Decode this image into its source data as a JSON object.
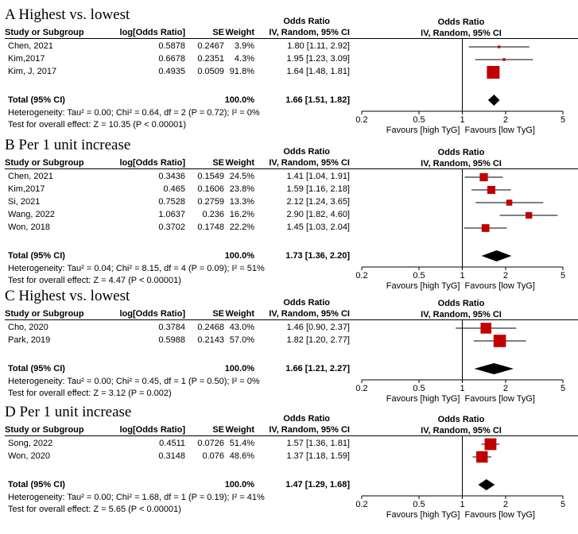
{
  "chart_data": [
    {
      "type": "forest",
      "title": "A Highest vs. lowest",
      "header": {
        "or_top": "Odds Ratio",
        "study": "Study or Subgroup",
        "logor": "log[Odds Ratio]",
        "se": "SE",
        "weight": "Weight",
        "ci": "IV, Random, 95% CI",
        "plot_top": "Odds Ratio",
        "plot_ci": "IV, Random, 95% CI"
      },
      "studies": [
        {
          "name": "Chen, 2021",
          "logor": "0.5878",
          "se": "0.2467",
          "weight": "3.9%",
          "ci_text": "1.80 [1.11, 2.92]",
          "or": 1.8,
          "lo": 1.11,
          "hi": 2.92,
          "w": 3.9
        },
        {
          "name": "Kim,2017",
          "logor": "0.6678",
          "se": "0.2351",
          "weight": "4.3%",
          "ci_text": "1.95 [1.23, 3.09]",
          "or": 1.95,
          "lo": 1.23,
          "hi": 3.09,
          "w": 4.3
        },
        {
          "name": "Kim, J, 2017",
          "logor": "0.4935",
          "se": "0.0509",
          "weight": "91.8%",
          "ci_text": "1.64 [1.48, 1.81]",
          "or": 1.64,
          "lo": 1.48,
          "hi": 1.81,
          "w": 91.8
        }
      ],
      "total": {
        "label": "Total (95% CI)",
        "weight": "100.0%",
        "ci_text": "1.66 [1.51, 1.82]",
        "or": 1.66,
        "lo": 1.51,
        "hi": 1.82
      },
      "heterogeneity": "Heterogeneity: Tau² = 0.00; Chi² = 0.64, df = 2 (P = 0.72); I² = 0%",
      "overall": "Test for overall effect: Z = 10.35 (P < 0.00001)",
      "x_ticks": [
        "0.2",
        "0.5",
        "1",
        "2",
        "5"
      ],
      "x_scale": "log",
      "xlim": [
        0.2,
        5
      ],
      "favours_left": "Favours [high TyG]",
      "favours_right": "Favours [low TyG]"
    },
    {
      "type": "forest",
      "title": "B Per 1 unit increase",
      "header": {
        "or_top": "Odds Ratio",
        "study": "Study or Subgroup",
        "logor": "log[Odds Ratio]",
        "se": "SE",
        "weight": "Weight",
        "ci": "IV, Random, 95% CI",
        "plot_top": "Odds Ratio",
        "plot_ci": "IV, Random, 95% CI"
      },
      "studies": [
        {
          "name": "Chen, 2021",
          "logor": "0.3436",
          "se": "0.1549",
          "weight": "24.5%",
          "ci_text": "1.41 [1.04, 1.91]",
          "or": 1.41,
          "lo": 1.04,
          "hi": 1.91,
          "w": 24.5
        },
        {
          "name": "Kim,2017",
          "logor": "0.465",
          "se": "0.1606",
          "weight": "23.8%",
          "ci_text": "1.59 [1.16, 2.18]",
          "or": 1.59,
          "lo": 1.16,
          "hi": 2.18,
          "w": 23.8
        },
        {
          "name": "Si, 2021",
          "logor": "0.7528",
          "se": "0.2759",
          "weight": "13.3%",
          "ci_text": "2.12 [1.24, 3.65]",
          "or": 2.12,
          "lo": 1.24,
          "hi": 3.65,
          "w": 13.3
        },
        {
          "name": "Wang, 2022",
          "logor": "1.0637",
          "se": "0.236",
          "weight": "16.2%",
          "ci_text": "2.90 [1.82, 4.60]",
          "or": 2.9,
          "lo": 1.82,
          "hi": 4.6,
          "w": 16.2
        },
        {
          "name": "Won, 2018",
          "logor": "0.3702",
          "se": "0.1748",
          "weight": "22.2%",
          "ci_text": "1.45 [1.03, 2.04]",
          "or": 1.45,
          "lo": 1.03,
          "hi": 2.04,
          "w": 22.2
        }
      ],
      "total": {
        "label": "Total (95% CI)",
        "weight": "100.0%",
        "ci_text": "1.73 [1.36, 2.20]",
        "or": 1.73,
        "lo": 1.36,
        "hi": 2.2
      },
      "heterogeneity": "Heterogeneity: Tau² = 0.04; Chi² = 8.15, df = 4 (P = 0.09); I² = 51%",
      "overall": "Test for overall effect: Z = 4.47 (P < 0.00001)",
      "x_ticks": [
        "0.2",
        "0.5",
        "1",
        "2",
        "5"
      ],
      "x_scale": "log",
      "xlim": [
        0.2,
        5
      ],
      "favours_left": "Favours [high TyG]",
      "favours_right": "Favours [low TyG]"
    },
    {
      "type": "forest",
      "title": "C Highest vs. lowest",
      "header": {
        "or_top": "Odds Ratio",
        "study": "Study or Subgroup",
        "logor": "log[Odds Ratio]",
        "se": "SE",
        "weight": "Weight",
        "ci": "IV, Random, 95% CI",
        "plot_top": "Odds Ratio",
        "plot_ci": "IV, Random, 95% CI"
      },
      "studies": [
        {
          "name": "Cho, 2020",
          "logor": "0.3784",
          "se": "0.2468",
          "weight": "43.0%",
          "ci_text": "1.46 [0.90, 2.37]",
          "or": 1.46,
          "lo": 0.9,
          "hi": 2.37,
          "w": 43.0
        },
        {
          "name": "Park, 2019",
          "logor": "0.5988",
          "se": "0.2143",
          "weight": "57.0%",
          "ci_text": "1.82 [1.20, 2.77]",
          "or": 1.82,
          "lo": 1.2,
          "hi": 2.77,
          "w": 57.0
        }
      ],
      "total": {
        "label": "Total (95% CI)",
        "weight": "100.0%",
        "ci_text": "1.66 [1.21, 2.27]",
        "or": 1.66,
        "lo": 1.21,
        "hi": 2.27
      },
      "heterogeneity": "Heterogeneity: Tau² = 0.00; Chi² = 0.45, df = 1 (P = 0.50); I² = 0%",
      "overall": "Test for overall effect: Z = 3.12 (P = 0.002)",
      "x_ticks": [
        "0.2",
        "0.5",
        "1",
        "2",
        "5"
      ],
      "x_scale": "log",
      "xlim": [
        0.2,
        5
      ],
      "favours_left": "Favours [high TyG]",
      "favours_right": "Favours [low TyG]"
    },
    {
      "type": "forest",
      "title": "D Per 1 unit increase",
      "header": {
        "or_top": "Odds Ratio",
        "study": "Study or Subgroup",
        "logor": "log[Odds Ratio]",
        "se": "SE",
        "weight": "Weight",
        "ci": "IV, Random, 95% CI",
        "plot_top": "Odds Ratio",
        "plot_ci": "IV, Random, 95% CI"
      },
      "studies": [
        {
          "name": "Song, 2022",
          "logor": "0.4511",
          "se": "0.0726",
          "weight": "51.4%",
          "ci_text": "1.57 [1.36, 1.81]",
          "or": 1.57,
          "lo": 1.36,
          "hi": 1.81,
          "w": 51.4
        },
        {
          "name": "Won, 2020",
          "logor": "0.3148",
          "se": "0.076",
          "weight": "48.6%",
          "ci_text": "1.37 [1.18, 1.59]",
          "or": 1.37,
          "lo": 1.18,
          "hi": 1.59,
          "w": 48.6
        }
      ],
      "total": {
        "label": "Total (95% CI)",
        "weight": "100.0%",
        "ci_text": "1.47 [1.29, 1.68]",
        "or": 1.47,
        "lo": 1.29,
        "hi": 1.68
      },
      "heterogeneity": "Heterogeneity: Tau² = 0.00; Chi² = 1.68, df = 1 (P = 0.19); I² = 41%",
      "overall": "Test for overall effect: Z = 5.65 (P < 0.00001)",
      "x_ticks": [
        "0.2",
        "0.5",
        "1",
        "2",
        "5"
      ],
      "x_scale": "log",
      "xlim": [
        0.2,
        5
      ],
      "favours_left": "Favours [high TyG]",
      "favours_right": "Favours [low TyG]"
    }
  ],
  "colors": {
    "marker": "#c00000",
    "diamond": "#000000",
    "line": "#000000"
  }
}
